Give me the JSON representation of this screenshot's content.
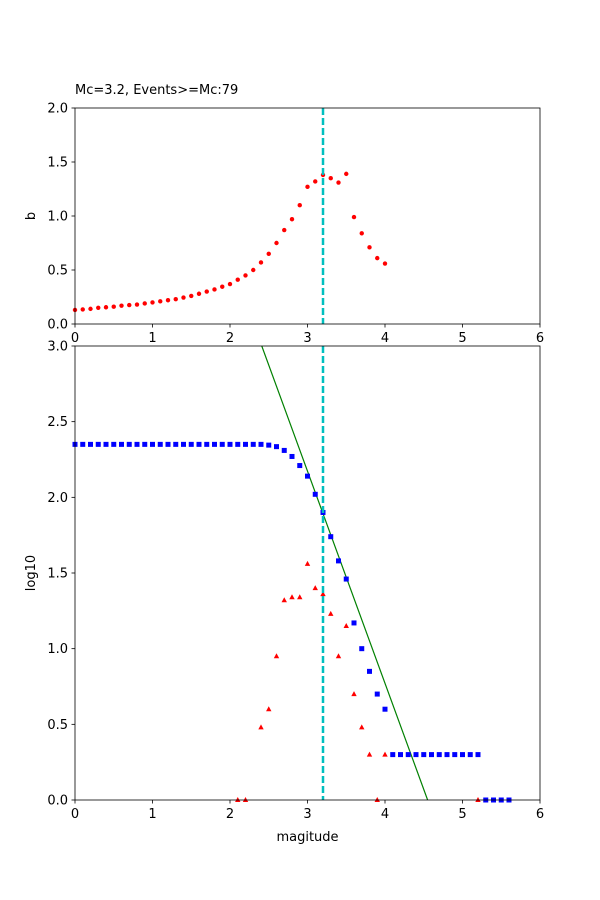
{
  "chart_data": [
    {
      "type": "scatter",
      "title": "Mc=3.2, Events>=Mc:79",
      "ylabel": "b",
      "xlim": [
        0,
        6
      ],
      "ylim": [
        0,
        2
      ],
      "xticks": [
        0,
        1,
        2,
        3,
        4,
        5,
        6
      ],
      "yticks": [
        {
          "value": 0,
          "label": "0.0"
        },
        {
          "value": 0.5,
          "label": "0.5"
        },
        {
          "value": 1,
          "label": "1.0"
        },
        {
          "value": 1.5,
          "label": "1.5"
        },
        {
          "value": 2,
          "label": "2.0"
        }
      ],
      "vline": {
        "value": 3.2,
        "color": "#00bfbf"
      },
      "series": [
        {
          "color": "#ff0000",
          "marker": "circle",
          "x": [
            0,
            0.1,
            0.2,
            0.3,
            0.4,
            0.5,
            0.6,
            0.7,
            0.8,
            0.9,
            1,
            1.1,
            1.2,
            1.3,
            1.4,
            1.5,
            1.6,
            1.7,
            1.8,
            1.9,
            2,
            2.1,
            2.2,
            2.3,
            2.4,
            2.5,
            2.6,
            2.7,
            2.8,
            2.9,
            3,
            3.1,
            3.2,
            3.3,
            3.4,
            3.5,
            3.6,
            3.7,
            3.8,
            3.9,
            4
          ],
          "values": [
            0.13,
            0.135,
            0.14,
            0.15,
            0.155,
            0.16,
            0.17,
            0.175,
            0.18,
            0.19,
            0.2,
            0.21,
            0.22,
            0.23,
            0.245,
            0.26,
            0.28,
            0.3,
            0.32,
            0.345,
            0.37,
            0.41,
            0.45,
            0.5,
            0.57,
            0.65,
            0.75,
            0.87,
            0.97,
            1.1,
            1.27,
            1.32,
            1.38,
            1.35,
            1.31,
            1.39,
            0.99,
            0.84,
            0.71,
            0.61,
            0.56
          ]
        }
      ]
    },
    {
      "type": "scatter",
      "xlabel": "magitude",
      "ylabel": "log10",
      "xlim": [
        0,
        6
      ],
      "ylim": [
        0,
        3
      ],
      "xticks": [
        0,
        1,
        2,
        3,
        4,
        5,
        6
      ],
      "yticks": [
        {
          "value": 0,
          "label": "0.0"
        },
        {
          "value": 0.5,
          "label": "0.5"
        },
        {
          "value": 1,
          "label": "1.0"
        },
        {
          "value": 1.5,
          "label": "1.5"
        },
        {
          "value": 2,
          "label": "2.0"
        },
        {
          "value": 2.5,
          "label": "2.5"
        },
        {
          "value": 3,
          "label": "3.0"
        }
      ],
      "vline": {
        "value": 3.2,
        "color": "#00bfbf"
      },
      "series": [
        {
          "color": "#0000ff",
          "marker": "square",
          "x": [
            0,
            0.1,
            0.2,
            0.3,
            0.4,
            0.5,
            0.6,
            0.7,
            0.8,
            0.9,
            1,
            1.1,
            1.2,
            1.3,
            1.4,
            1.5,
            1.6,
            1.7,
            1.8,
            1.9,
            2,
            2.1,
            2.2,
            2.3,
            2.4,
            2.5,
            2.6,
            2.7,
            2.8,
            2.9,
            3,
            3.1,
            3.2,
            3.3,
            3.4,
            3.5,
            3.6,
            3.7,
            3.8,
            3.9,
            4,
            4.1,
            4.2,
            4.3,
            4.4,
            4.5,
            4.6,
            4.7,
            4.8,
            4.9,
            5,
            5.1,
            5.2,
            5.3,
            5.4,
            5.5,
            5.6
          ],
          "values": [
            2.35,
            2.35,
            2.35,
            2.35,
            2.35,
            2.35,
            2.35,
            2.35,
            2.35,
            2.35,
            2.35,
            2.35,
            2.35,
            2.35,
            2.35,
            2.35,
            2.35,
            2.35,
            2.35,
            2.35,
            2.35,
            2.35,
            2.35,
            2.35,
            2.35,
            2.345,
            2.335,
            2.31,
            2.27,
            2.21,
            2.14,
            2.02,
            1.9,
            1.74,
            1.58,
            1.46,
            1.17,
            1,
            0.85,
            0.7,
            0.6,
            0.3,
            0.3,
            0.3,
            0.3,
            0.3,
            0.3,
            0.3,
            0.3,
            0.3,
            0.3,
            0.3,
            0.3,
            0,
            0,
            0,
            0
          ]
        },
        {
          "color": "#ff0000",
          "marker": "triangle",
          "x": [
            2.1,
            2.2,
            2.4,
            2.5,
            2.6,
            2.7,
            2.8,
            2.9,
            3,
            3.1,
            3.2,
            3.3,
            3.4,
            3.5,
            3.6,
            3.7,
            3.8,
            3.9,
            4,
            5.2
          ],
          "values": [
            0,
            0,
            0.48,
            0.6,
            0.95,
            1.32,
            1.34,
            1.34,
            1.56,
            1.4,
            1.36,
            1.23,
            0.95,
            1.15,
            0.7,
            0.48,
            0.3,
            0,
            0.3,
            0
          ]
        },
        {
          "color": "#008000",
          "marker": "line",
          "x": [
            2.41,
            4.55
          ],
          "values": [
            3,
            0
          ]
        }
      ]
    }
  ]
}
